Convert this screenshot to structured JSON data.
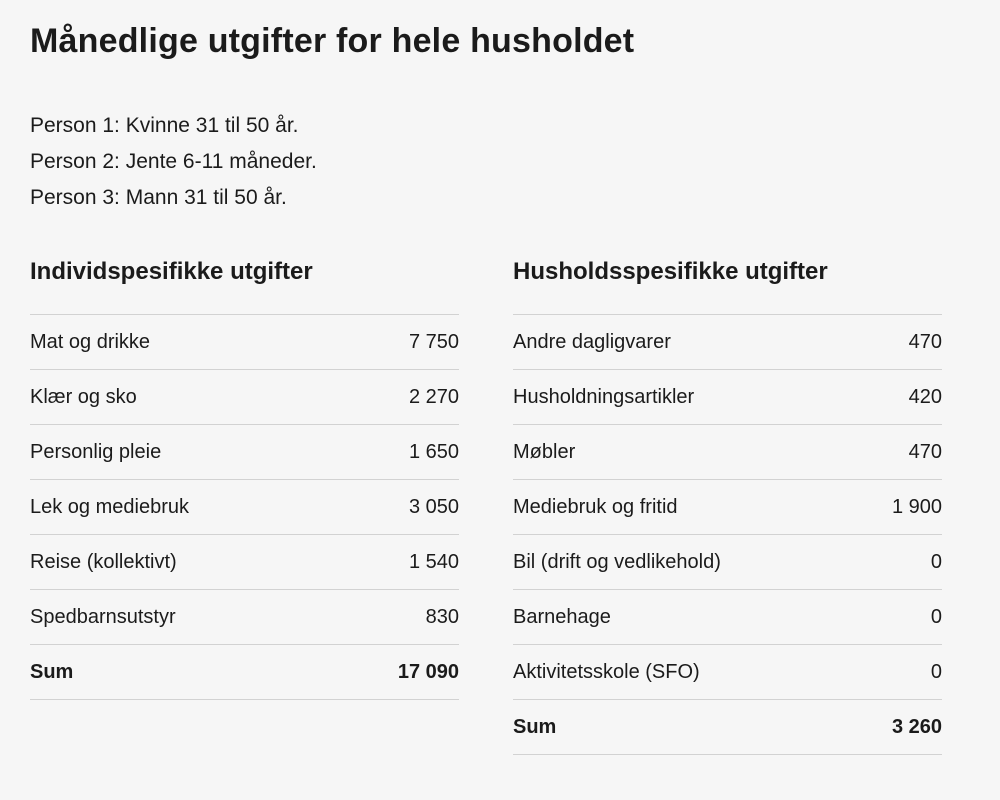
{
  "title": "Månedlige utgifter for hele husholdet",
  "persons": [
    "Person 1: Kvinne 31 til 50 år.",
    "Person 2: Jente 6-11 måneder.",
    "Person 3: Mann 31 til 50 år."
  ],
  "individual": {
    "heading": "Individspesifikke utgifter",
    "rows": [
      {
        "label": "Mat og drikke",
        "value": "7 750"
      },
      {
        "label": "Klær og sko",
        "value": "2 270"
      },
      {
        "label": "Personlig pleie",
        "value": "1 650"
      },
      {
        "label": "Lek og mediebruk",
        "value": "3 050"
      },
      {
        "label": "Reise (kollektivt)",
        "value": "1 540"
      },
      {
        "label": "Spedbarnsutstyr",
        "value": "830"
      }
    ],
    "sum": {
      "label": "Sum",
      "value": "17 090"
    }
  },
  "household": {
    "heading": "Husholdsspesifikke utgifter",
    "rows": [
      {
        "label": "Andre dagligvarer",
        "value": "470"
      },
      {
        "label": "Husholdningsartikler",
        "value": "420"
      },
      {
        "label": "Møbler",
        "value": "470"
      },
      {
        "label": "Mediebruk og fritid",
        "value": "1 900"
      },
      {
        "label": "Bil (drift og vedlikehold)",
        "value": "0"
      },
      {
        "label": "Barnehage",
        "value": "0"
      },
      {
        "label": "Aktivitetsskole (SFO)",
        "value": "0"
      }
    ],
    "sum": {
      "label": "Sum",
      "value": "3 260"
    }
  }
}
